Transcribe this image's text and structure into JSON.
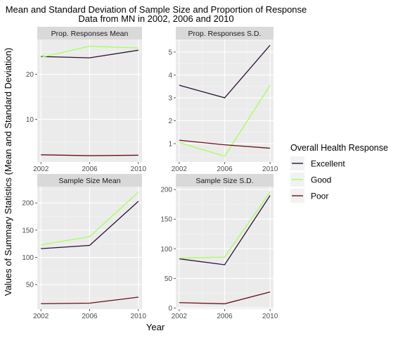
{
  "chart_data": {
    "type": "line",
    "title": "Mean and Standard Deviation of Sample Size and Proportion of Response",
    "subtitle": "Data from MN in 2002, 2006 and 2010",
    "xlabel": "Year",
    "ylabel": "Values of Summary Statistics (Mean and Standard Deviation)",
    "x": [
      2002,
      2006,
      2010
    ],
    "grid": true,
    "legend": {
      "title": "Overall Health Response",
      "position": "right",
      "entries": [
        {
          "name": "Excellent",
          "color": "#2a1038"
        },
        {
          "name": "Good",
          "color": "#a6ff59"
        },
        {
          "name": "Poor",
          "color": "#6b0f1a"
        }
      ]
    },
    "panels": [
      {
        "strip": "Prop. Responses Mean",
        "ylim": [
          0.5,
          27.8
        ],
        "yticks": [
          10,
          20
        ],
        "series": [
          {
            "name": "Excellent",
            "values": [
              24.0,
              23.7,
              25.4
            ]
          },
          {
            "name": "Good",
            "values": [
              23.8,
              26.3,
              25.9
            ]
          },
          {
            "name": "Poor",
            "values": [
              2.1,
              1.9,
              2.0
            ]
          }
        ]
      },
      {
        "strip": "Prop. Responses S.D.",
        "ylim": [
          0.2,
          5.55
        ],
        "yticks": [
          1,
          2,
          3,
          4,
          5
        ],
        "series": [
          {
            "name": "Excellent",
            "values": [
              3.55,
              3.0,
              5.3
            ]
          },
          {
            "name": "Good",
            "values": [
              1.05,
              0.45,
              3.55
            ]
          },
          {
            "name": "Poor",
            "values": [
              1.15,
              0.95,
              0.8
            ]
          }
        ]
      },
      {
        "strip": "Sample Size Mean",
        "ylim": [
          5,
          230
        ],
        "yticks": [
          50,
          100,
          150,
          200
        ],
        "series": [
          {
            "name": "Excellent",
            "values": [
              116,
              122,
              203
            ]
          },
          {
            "name": "Good",
            "values": [
              123,
              138,
              220
            ]
          },
          {
            "name": "Poor",
            "values": [
              15,
              16,
              27
            ]
          }
        ]
      },
      {
        "strip": "Sample Size S.D.",
        "ylim": [
          -2,
          205
        ],
        "yticks": [
          0,
          50,
          100,
          150,
          200
        ],
        "series": [
          {
            "name": "Excellent",
            "values": [
              83,
              73,
              190
            ]
          },
          {
            "name": "Good",
            "values": [
              84,
              86,
              196
            ]
          },
          {
            "name": "Poor",
            "values": [
              9,
              7,
              27
            ]
          }
        ]
      }
    ]
  }
}
